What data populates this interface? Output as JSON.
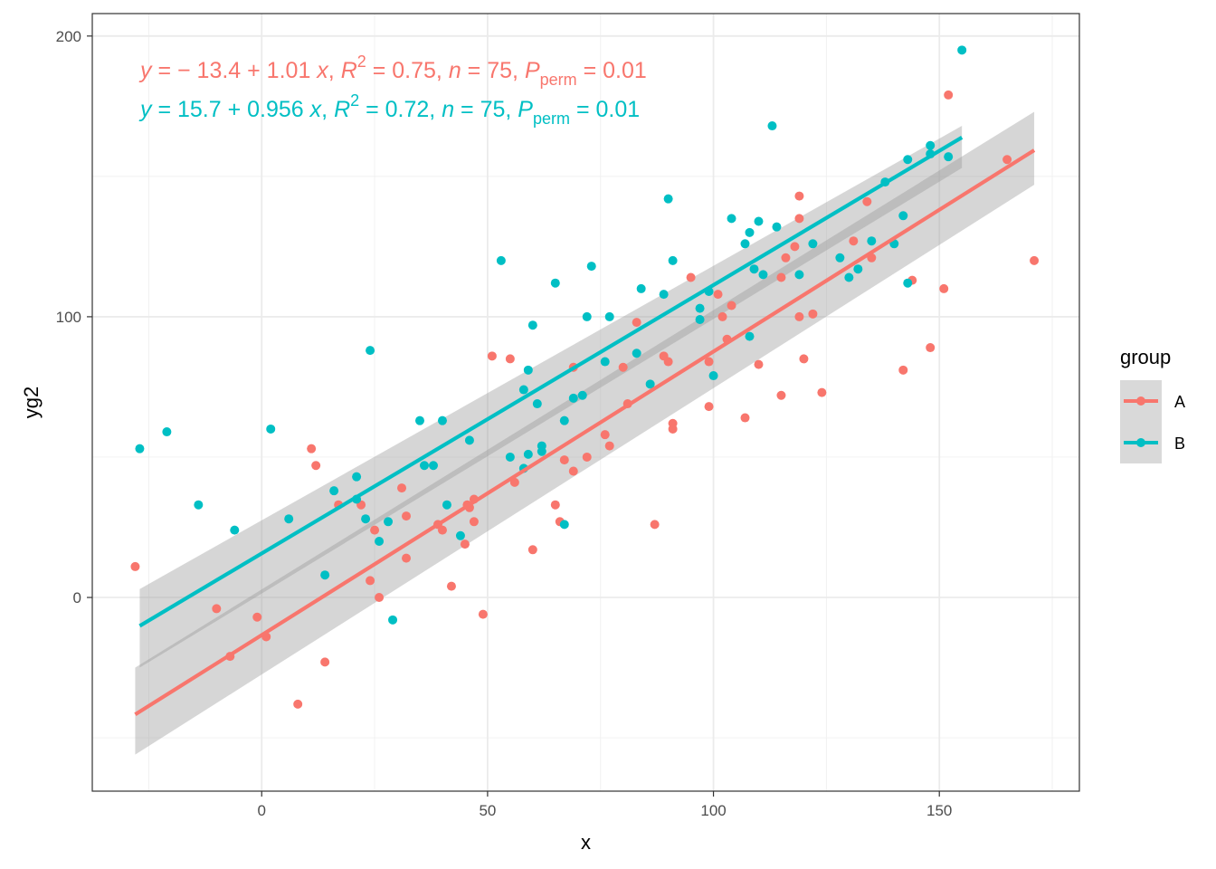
{
  "chart_data": {
    "type": "scatter",
    "title": "",
    "xlabel": "x",
    "ylabel": "yg2",
    "xlim": [
      -37.5,
      181
    ],
    "ylim": [
      -69,
      208
    ],
    "x_ticks": [
      0,
      50,
      100,
      150
    ],
    "y_ticks": [
      0,
      100,
      200
    ],
    "x_tick_labels": [
      "0",
      "50",
      "100",
      "150"
    ],
    "y_tick_labels": [
      "0",
      "100",
      "200"
    ],
    "grid": true,
    "legend": {
      "title": "group",
      "position": "right",
      "entries": [
        {
          "label": "A",
          "color": "#F8766D"
        },
        {
          "label": "B",
          "color": "#00BFC4"
        }
      ]
    },
    "annotations": [
      {
        "series": "A",
        "color": "#F8766D",
        "text": "y = − 13.4 + 1.01 x, R2 = 0.75, n = 75, Pperm = 0.01",
        "parts": {
          "y": "y",
          "eq": " = − 13.4 + 1.01 ",
          "x": "x",
          "r_lead": ", ",
          "R": "R",
          "r_sup": "2",
          "r_val": " = 0.75, ",
          "n": "n",
          "n_val": " = 75, ",
          "P": "P",
          "p_sub": "perm",
          "p_val": " = 0.01"
        }
      },
      {
        "series": "B",
        "color": "#00BFC4",
        "text": "y = 15.7 + 0.956 x, R2 = 0.72, n = 75, Pperm = 0.01",
        "parts": {
          "y": "y",
          "eq": " = 15.7 + 0.956 ",
          "x": "x",
          "r_lead": ", ",
          "R": "R",
          "r_sup": "2",
          "r_val": " = 0.72, ",
          "n": "n",
          "n_val": " = 75, ",
          "P": "P",
          "p_sub": "perm",
          "p_val": " = 0.01"
        }
      }
    ],
    "series": [
      {
        "name": "A",
        "color": "#F8766D",
        "fit": {
          "intercept": -13.4,
          "slope": 1.01,
          "x_range": [
            -28,
            171
          ]
        },
        "band": [
          [
            -28,
            -56
          ],
          [
            -28,
            -25
          ],
          [
            171,
            173
          ],
          [
            171,
            147
          ]
        ],
        "points": [
          [
            -28,
            11
          ],
          [
            -10,
            -4
          ],
          [
            -7,
            -21
          ],
          [
            -1,
            -7
          ],
          [
            1,
            -14
          ],
          [
            8,
            -38
          ],
          [
            11,
            53
          ],
          [
            12,
            47
          ],
          [
            14,
            -23
          ],
          [
            17,
            33
          ],
          [
            22,
            33
          ],
          [
            24,
            6
          ],
          [
            25,
            24
          ],
          [
            26,
            0
          ],
          [
            31,
            39
          ],
          [
            32,
            29
          ],
          [
            32,
            14
          ],
          [
            39,
            26
          ],
          [
            40,
            24
          ],
          [
            42,
            4
          ],
          [
            45,
            19
          ],
          [
            46,
            32
          ],
          [
            47,
            35
          ],
          [
            47,
            27
          ],
          [
            49,
            -6
          ],
          [
            51,
            86
          ],
          [
            55,
            85
          ],
          [
            56,
            41
          ],
          [
            60,
            17
          ],
          [
            65,
            33
          ],
          [
            66,
            27
          ],
          [
            67,
            49
          ],
          [
            69,
            82
          ],
          [
            69,
            45
          ],
          [
            72,
            50
          ],
          [
            76,
            58
          ],
          [
            77,
            54
          ],
          [
            80,
            82
          ],
          [
            81,
            69
          ],
          [
            83,
            98
          ],
          [
            87,
            26
          ],
          [
            89,
            86
          ],
          [
            90,
            84
          ],
          [
            91,
            62
          ],
          [
            91,
            60
          ],
          [
            95,
            114
          ],
          [
            99,
            84
          ],
          [
            99,
            68
          ],
          [
            101,
            108
          ],
          [
            102,
            100
          ],
          [
            103,
            92
          ],
          [
            104,
            104
          ],
          [
            107,
            64
          ],
          [
            110,
            83
          ],
          [
            115,
            114
          ],
          [
            115,
            72
          ],
          [
            116,
            121
          ],
          [
            118,
            125
          ],
          [
            119,
            143
          ],
          [
            119,
            100
          ],
          [
            119,
            135
          ],
          [
            120,
            85
          ],
          [
            122,
            101
          ],
          [
            124,
            73
          ],
          [
            131,
            127
          ],
          [
            134,
            141
          ],
          [
            135,
            121
          ],
          [
            142,
            81
          ],
          [
            144,
            113
          ],
          [
            148,
            89
          ],
          [
            151,
            110
          ],
          [
            152,
            179
          ],
          [
            165,
            156
          ],
          [
            171,
            120
          ],
          [
            45.5,
            33
          ]
        ]
      },
      {
        "name": "B",
        "color": "#00BFC4",
        "fit": {
          "intercept": 15.7,
          "slope": 0.956,
          "x_range": [
            -27,
            155
          ]
        },
        "band": [
          [
            -27,
            -25
          ],
          [
            -27,
            3
          ],
          [
            155,
            168
          ],
          [
            155,
            153
          ]
        ],
        "points": [
          [
            -27,
            53
          ],
          [
            -21,
            59
          ],
          [
            -14,
            33
          ],
          [
            -6,
            24
          ],
          [
            2,
            60
          ],
          [
            6,
            28
          ],
          [
            14,
            8
          ],
          [
            16,
            38
          ],
          [
            21,
            43
          ],
          [
            21,
            35
          ],
          [
            23,
            28
          ],
          [
            24,
            88
          ],
          [
            26,
            20
          ],
          [
            28,
            27
          ],
          [
            29,
            -8
          ],
          [
            35,
            63
          ],
          [
            36,
            47
          ],
          [
            38,
            47
          ],
          [
            40,
            63
          ],
          [
            41,
            33
          ],
          [
            44,
            22
          ],
          [
            46,
            56
          ],
          [
            53,
            120
          ],
          [
            55,
            50
          ],
          [
            58,
            74
          ],
          [
            58,
            46
          ],
          [
            59,
            81
          ],
          [
            59,
            51
          ],
          [
            60,
            97
          ],
          [
            61,
            69
          ],
          [
            62,
            52
          ],
          [
            62,
            54
          ],
          [
            65,
            112
          ],
          [
            67,
            63
          ],
          [
            67,
            26
          ],
          [
            69,
            71
          ],
          [
            71,
            72
          ],
          [
            72,
            100
          ],
          [
            73,
            118
          ],
          [
            76,
            84
          ],
          [
            77,
            100
          ],
          [
            83,
            87
          ],
          [
            84,
            110
          ],
          [
            86,
            76
          ],
          [
            89,
            108
          ],
          [
            90,
            142
          ],
          [
            91,
            120
          ],
          [
            97,
            103
          ],
          [
            97,
            99
          ],
          [
            99,
            109
          ],
          [
            100,
            79
          ],
          [
            104,
            135
          ],
          [
            107,
            126
          ],
          [
            108,
            93
          ],
          [
            108,
            130
          ],
          [
            109,
            117
          ],
          [
            110,
            134
          ],
          [
            111,
            115
          ],
          [
            113,
            168
          ],
          [
            114,
            132
          ],
          [
            119,
            115
          ],
          [
            122,
            126
          ],
          [
            128,
            121
          ],
          [
            130,
            114
          ],
          [
            132,
            117
          ],
          [
            135,
            127
          ],
          [
            138,
            148
          ],
          [
            140,
            126
          ],
          [
            142,
            136
          ],
          [
            143,
            156
          ],
          [
            143,
            112
          ],
          [
            148,
            161
          ],
          [
            148,
            158
          ],
          [
            152,
            157
          ],
          [
            155,
            195
          ]
        ]
      }
    ]
  }
}
